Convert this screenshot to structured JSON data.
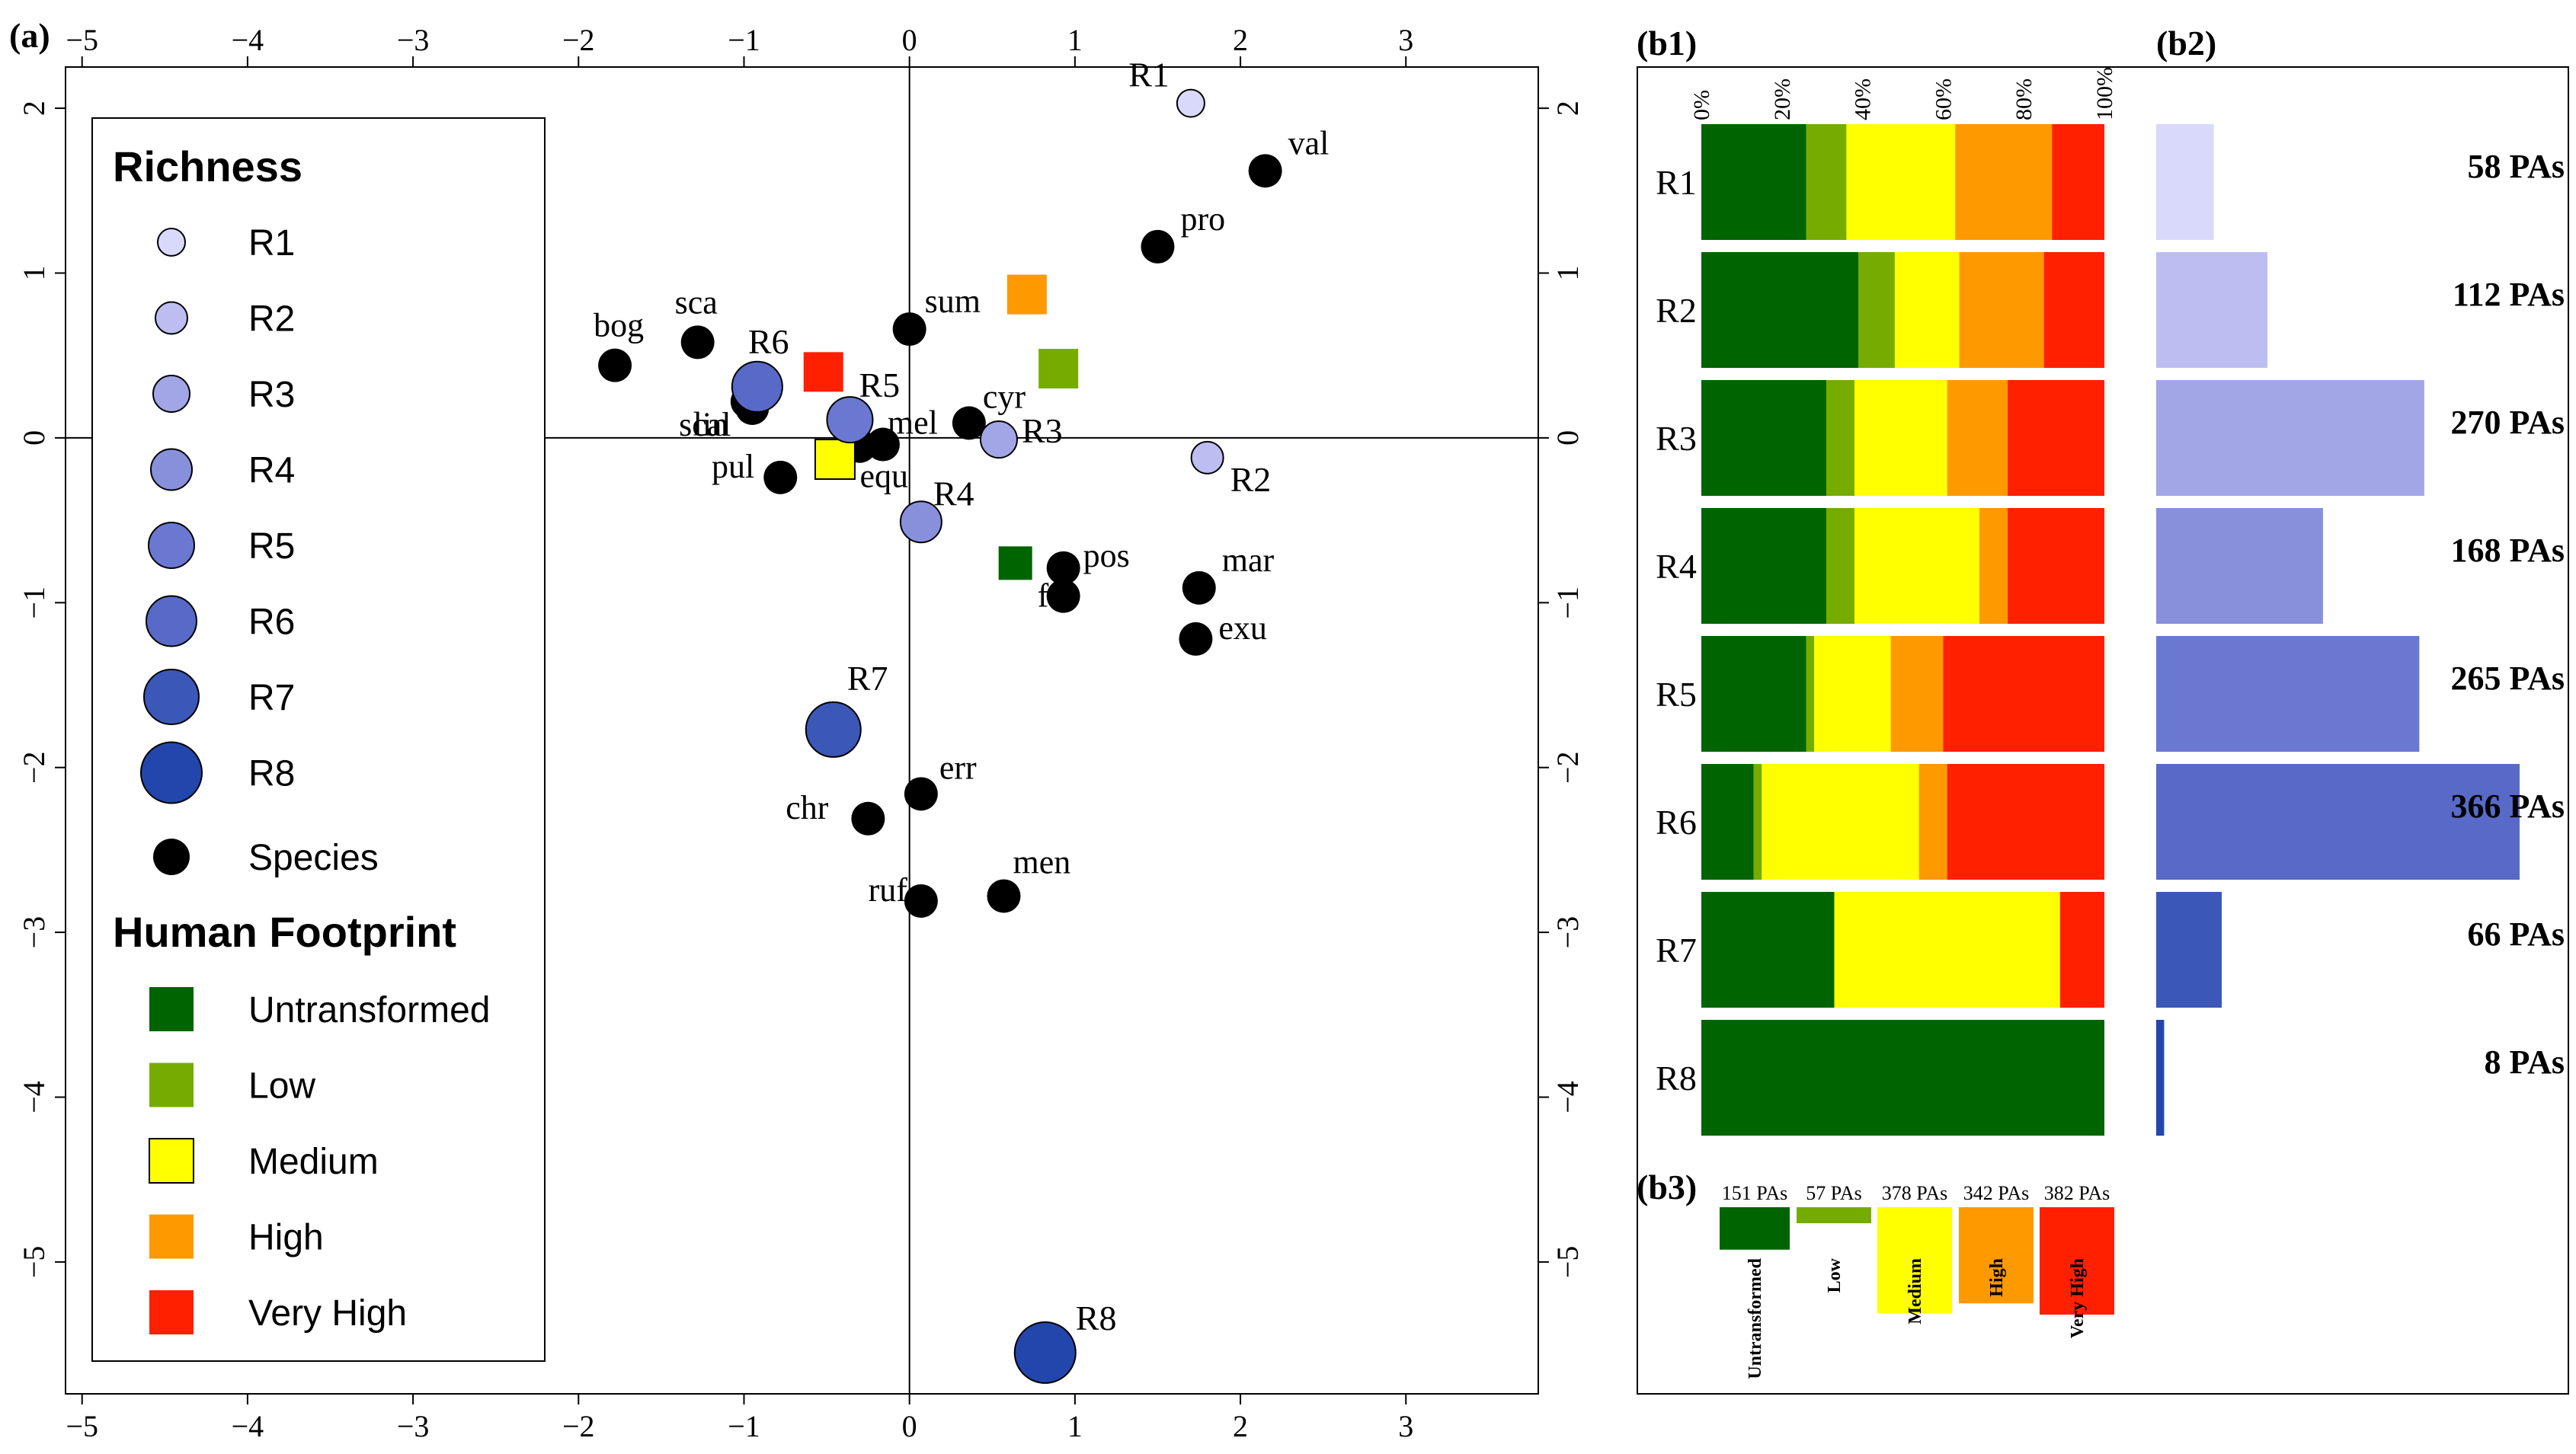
{
  "chart_data": [
    {
      "panel": "(a)",
      "type": "scatter",
      "title": "",
      "xlabel": "",
      "ylabel": "",
      "xlim": [
        -5.1,
        3.8
      ],
      "ylim": [
        -5.8,
        2.25
      ],
      "x_ticks": [
        -5,
        -4,
        -3,
        -2,
        -1,
        0,
        1,
        2,
        3
      ],
      "x_tick_labels": [
        "−5",
        "−4",
        "−3",
        "−2",
        "−1",
        "0",
        "1",
        "2",
        "3"
      ],
      "y_ticks": [
        -5,
        -4,
        -3,
        -2,
        -1,
        0,
        1,
        2
      ],
      "y_tick_labels": [
        "−5",
        "−4",
        "−3",
        "−2",
        "−1",
        "0",
        "1",
        "2"
      ],
      "species": [
        {
          "label": "val",
          "x": 2.15,
          "y": 1.62
        },
        {
          "label": "pro",
          "x": 1.5,
          "y": 1.16
        },
        {
          "label": "sum",
          "x": 0.0,
          "y": 0.66
        },
        {
          "label": "bog",
          "x": -1.78,
          "y": 0.44
        },
        {
          "label": "sca",
          "x": -1.28,
          "y": 0.58
        },
        {
          "label": "lin",
          "x": -0.98,
          "y": 0.22
        },
        {
          "label": "scal",
          "x": -0.95,
          "y": 0.18
        },
        {
          "label": "cyr",
          "x": 0.36,
          "y": 0.09
        },
        {
          "label": "mel",
          "x": -0.16,
          "y": -0.04
        },
        {
          "label": "equ",
          "x": -0.3,
          "y": -0.05
        },
        {
          "label": "pul",
          "x": -0.78,
          "y": -0.24
        },
        {
          "label": "pos",
          "x": 0.93,
          "y": -0.79
        },
        {
          "label": "ful",
          "x": 0.93,
          "y": -0.96
        },
        {
          "label": "mar",
          "x": 1.75,
          "y": -0.91
        },
        {
          "label": "exu",
          "x": 1.73,
          "y": -1.22
        },
        {
          "label": "err",
          "x": 0.07,
          "y": -2.16
        },
        {
          "label": "chr",
          "x": -0.25,
          "y": -2.31
        },
        {
          "label": "men",
          "x": 0.57,
          "y": -2.78
        },
        {
          "label": "ruf",
          "x": 0.07,
          "y": -2.81
        }
      ],
      "richness_points": [
        {
          "label": "R1",
          "x": 1.7,
          "y": 2.03
        },
        {
          "label": "R2",
          "x": 1.8,
          "y": -0.12
        },
        {
          "label": "R3",
          "x": 0.54,
          "y": -0.01
        },
        {
          "label": "R4",
          "x": 0.07,
          "y": -0.51
        },
        {
          "label": "R5",
          "x": -0.36,
          "y": 0.11
        },
        {
          "label": "R6",
          "x": -0.92,
          "y": 0.31
        },
        {
          "label": "R7",
          "x": -0.46,
          "y": -1.77
        },
        {
          "label": "R8",
          "x": 0.82,
          "y": -5.55
        }
      ],
      "footprint_points": [
        {
          "label": "Untransformed",
          "x": 0.64,
          "y": -0.76
        },
        {
          "label": "Low",
          "x": 0.9,
          "y": 0.42
        },
        {
          "label": "Medium",
          "x": -0.45,
          "y": -0.13
        },
        {
          "label": "High",
          "x": 0.71,
          "y": 0.87
        },
        {
          "label": "Very High",
          "x": -0.52,
          "y": 0.4
        }
      ],
      "legend_titles": {
        "richness": "Richness",
        "footprint": "Human Footprint"
      },
      "legend_richness": [
        "R1",
        "R2",
        "R3",
        "R4",
        "R5",
        "R6",
        "R7",
        "R8"
      ],
      "legend_species": "Species",
      "legend_footprint": [
        "Untransformed",
        "Low",
        "Medium",
        "High",
        "Very High"
      ]
    },
    {
      "panel": "(b1)",
      "type": "bar",
      "orientation": "horizontal-stacked-percent",
      "xlim": [
        0,
        100
      ],
      "ticks": [
        0,
        20,
        40,
        60,
        80,
        100
      ],
      "tick_labels": [
        "0%",
        "20%",
        "40%",
        "60%",
        "80%",
        "100%"
      ],
      "categories": [
        "R1",
        "R2",
        "R3",
        "R4",
        "R5",
        "R6",
        "R7",
        "R8"
      ],
      "series": [
        {
          "name": "Untransformed",
          "values": [
            26,
            39,
            31,
            31,
            26,
            13,
            33,
            100
          ]
        },
        {
          "name": "Low",
          "values": [
            10,
            9,
            7,
            7,
            2,
            2,
            0,
            0
          ]
        },
        {
          "name": "Medium",
          "values": [
            27,
            16,
            23,
            31,
            19,
            39,
            56,
            0
          ]
        },
        {
          "name": "High",
          "values": [
            24,
            21,
            15,
            7,
            13,
            7,
            0,
            0
          ]
        },
        {
          "name": "Very High",
          "values": [
            13,
            15,
            24,
            24,
            40,
            39,
            11,
            0
          ]
        }
      ]
    },
    {
      "panel": "(b2)",
      "type": "bar",
      "orientation": "horizontal",
      "categories": [
        "R1",
        "R2",
        "R3",
        "R4",
        "R5",
        "R6",
        "R7",
        "R8"
      ],
      "values": [
        58,
        112,
        270,
        168,
        265,
        366,
        66,
        8
      ],
      "value_labels": [
        "58 PAs",
        "112 PAs",
        "270 PAs",
        "168 PAs",
        "265 PAs",
        "366 PAs",
        "66 PAs",
        "8 PAs"
      ]
    },
    {
      "panel": "(b3)",
      "type": "bar",
      "categories": [
        "Untransformed",
        "Low",
        "Medium",
        "High",
        "Very High"
      ],
      "values": [
        151,
        57,
        378,
        342,
        382
      ],
      "value_labels": [
        "151 PAs",
        "57 PAs",
        "378 PAs",
        "342 PAs",
        "382 PAs"
      ]
    }
  ],
  "colors": {
    "richness": [
      "#d9d9fb",
      "#bdbdf1",
      "#a3a6e6",
      "#8890dc",
      "#6a78d2",
      "#5869c8",
      "#3b57b8",
      "#2346ad"
    ],
    "footprint": [
      "#006400",
      "#76ac00",
      "#ffff00",
      "#ff9900",
      "#ff2000"
    ],
    "species": "#000000"
  }
}
